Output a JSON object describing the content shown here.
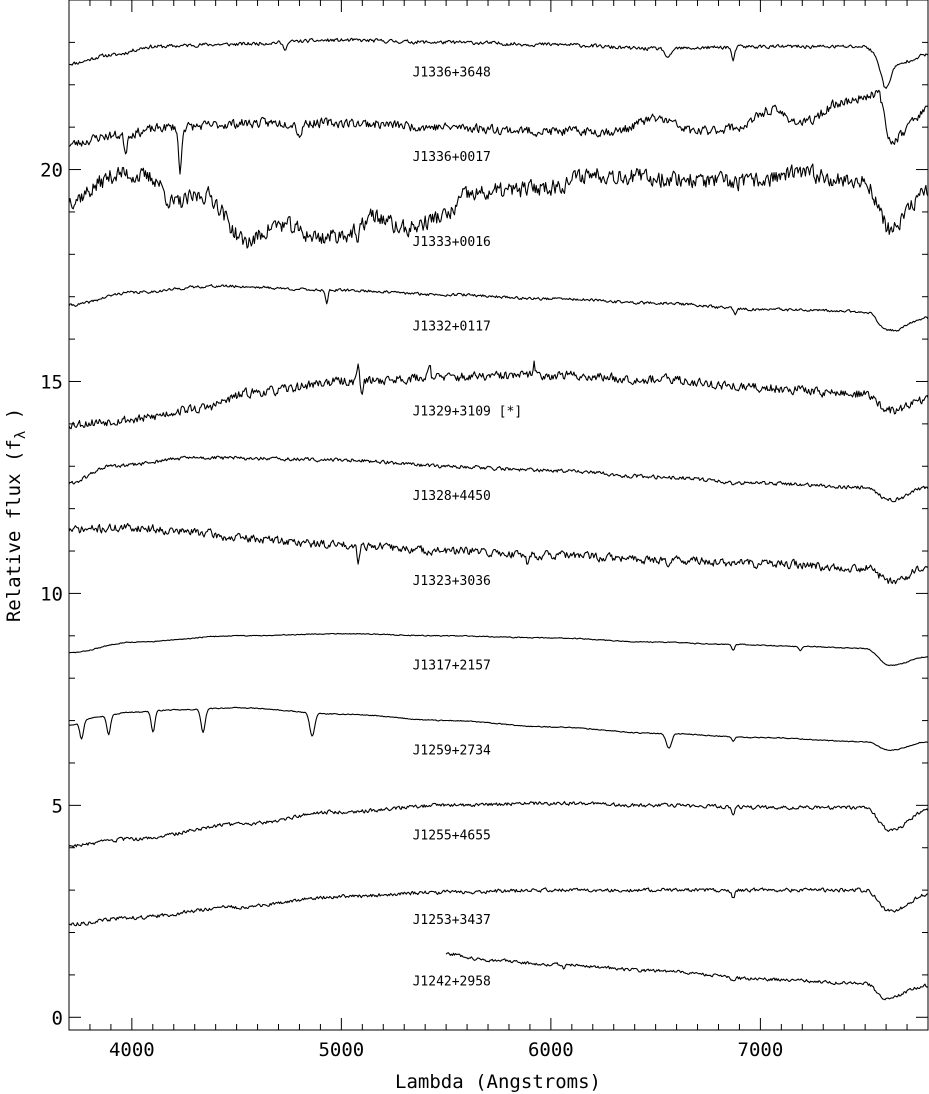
{
  "chart_data": {
    "type": "line",
    "xlabel": "Lambda (Angstroms)",
    "ylabel": "Relative flux (f",
    "ylabel_subscript": "λ",
    "ylabel_suffix": " )",
    "xlim": [
      3700,
      7800
    ],
    "ylim": [
      -0.3,
      24
    ],
    "x_ticks": [
      {
        "value": 4000,
        "label": "4000"
      },
      {
        "value": 5000,
        "label": "5000"
      },
      {
        "value": 6000,
        "label": "6000"
      },
      {
        "value": 7000,
        "label": "7000"
      }
    ],
    "y_ticks": [
      {
        "value": 0,
        "label": "0"
      },
      {
        "value": 5,
        "label": "5"
      },
      {
        "value": 10,
        "label": "10"
      },
      {
        "value": 15,
        "label": "15"
      },
      {
        "value": 20,
        "label": "20"
      }
    ],
    "grid": false,
    "series": [
      {
        "name": "J1336+3648",
        "label_y": 22.2,
        "x_start": 3700,
        "noise": 0.04,
        "seed": 11,
        "points": [
          [
            3700,
            22.5
          ],
          [
            3900,
            22.7
          ],
          [
            4100,
            22.9
          ],
          [
            4400,
            22.95
          ],
          [
            5000,
            23.05
          ],
          [
            5500,
            23.0
          ],
          [
            6000,
            22.95
          ],
          [
            6500,
            22.85
          ],
          [
            7000,
            22.9
          ],
          [
            7500,
            22.9
          ],
          [
            7600,
            22.4
          ],
          [
            7800,
            22.7
          ]
        ],
        "dips": [
          [
            4730,
            0.15,
            15
          ],
          [
            6560,
            0.25,
            18
          ],
          [
            6870,
            0.35,
            10
          ],
          [
            7600,
            0.5,
            25
          ]
        ]
      },
      {
        "name": "J1336+0017",
        "label_y": 20.2,
        "x_start": 3700,
        "noise": 0.1,
        "seed": 23,
        "points": [
          [
            3700,
            20.6
          ],
          [
            3900,
            20.8
          ],
          [
            4200,
            21.0
          ],
          [
            4600,
            21.1
          ],
          [
            5000,
            21.1
          ],
          [
            5500,
            21.0
          ],
          [
            6000,
            20.9
          ],
          [
            6300,
            20.9
          ],
          [
            6500,
            21.2
          ],
          [
            6700,
            20.9
          ],
          [
            6900,
            21.0
          ],
          [
            7050,
            21.4
          ],
          [
            7200,
            21.1
          ],
          [
            7400,
            21.6
          ],
          [
            7560,
            21.8
          ],
          [
            7620,
            20.7
          ],
          [
            7800,
            21.4
          ]
        ],
        "dips": [
          [
            4230,
            1.1,
            10
          ],
          [
            4800,
            0.3,
            15
          ],
          [
            3970,
            0.4,
            10
          ]
        ]
      },
      {
        "name": "J1333+0016",
        "label_y": 18.2,
        "x_start": 3700,
        "noise": 0.18,
        "seed": 37,
        "points": [
          [
            3700,
            19.3
          ],
          [
            3950,
            19.9
          ],
          [
            4100,
            19.8
          ],
          [
            4200,
            19.2
          ],
          [
            4350,
            19.4
          ],
          [
            4550,
            18.3
          ],
          [
            4700,
            18.7
          ],
          [
            4900,
            18.4
          ],
          [
            5050,
            18.5
          ],
          [
            5150,
            18.9
          ],
          [
            5300,
            18.6
          ],
          [
            5500,
            18.9
          ],
          [
            5600,
            19.4
          ],
          [
            5800,
            19.5
          ],
          [
            6000,
            19.6
          ],
          [
            6200,
            19.9
          ],
          [
            6500,
            19.8
          ],
          [
            6900,
            19.7
          ],
          [
            7200,
            19.9
          ],
          [
            7500,
            19.7
          ],
          [
            7620,
            18.6
          ],
          [
            7800,
            19.5
          ]
        ],
        "dips": [
          [
            5080,
            0.4,
            8
          ]
        ]
      },
      {
        "name": "J1332+0117",
        "label_y": 16.2,
        "x_start": 3700,
        "noise": 0.03,
        "seed": 41,
        "points": [
          [
            3700,
            16.8
          ],
          [
            4000,
            17.1
          ],
          [
            4400,
            17.25
          ],
          [
            5000,
            17.15
          ],
          [
            5500,
            17.05
          ],
          [
            6000,
            16.95
          ],
          [
            6500,
            16.85
          ],
          [
            7000,
            16.7
          ],
          [
            7500,
            16.65
          ],
          [
            7620,
            16.2
          ],
          [
            7800,
            16.5
          ]
        ],
        "dips": [
          [
            4930,
            0.3,
            8
          ],
          [
            6880,
            0.15,
            10
          ]
        ]
      },
      {
        "name": "J1329+3109 [*]",
        "label_y": 14.2,
        "x_start": 3700,
        "noise": 0.1,
        "seed": 53,
        "points": [
          [
            3700,
            14.0
          ],
          [
            4000,
            14.1
          ],
          [
            4300,
            14.35
          ],
          [
            4600,
            14.75
          ],
          [
            5000,
            15.0
          ],
          [
            5500,
            15.1
          ],
          [
            6000,
            15.15
          ],
          [
            6500,
            15.05
          ],
          [
            7000,
            14.85
          ],
          [
            7500,
            14.7
          ],
          [
            7620,
            14.3
          ],
          [
            7800,
            14.6
          ]
        ],
        "dips": [
          [
            5100,
            0.3,
            8
          ]
        ],
        "peaks": [
          [
            5080,
            0.4,
            8
          ],
          [
            5420,
            0.4,
            8
          ],
          [
            5920,
            0.25,
            8
          ]
        ]
      },
      {
        "name": "J1328+4450",
        "label_y": 12.2,
        "x_start": 3700,
        "noise": 0.04,
        "seed": 61,
        "points": [
          [
            3700,
            12.6
          ],
          [
            3900,
            13.0
          ],
          [
            4300,
            13.2
          ],
          [
            5000,
            13.15
          ],
          [
            5500,
            13.0
          ],
          [
            6000,
            12.9
          ],
          [
            6500,
            12.75
          ],
          [
            7000,
            12.6
          ],
          [
            7500,
            12.5
          ],
          [
            7620,
            12.2
          ],
          [
            7800,
            12.5
          ]
        ],
        "dips": [
          [
            6870,
            0.1,
            10
          ]
        ]
      },
      {
        "name": "J1323+3036",
        "label_y": 10.2,
        "x_start": 3700,
        "noise": 0.09,
        "seed": 71,
        "points": [
          [
            3700,
            11.5
          ],
          [
            4000,
            11.55
          ],
          [
            4300,
            11.45
          ],
          [
            4500,
            11.3
          ],
          [
            5000,
            11.15
          ],
          [
            5500,
            11.0
          ],
          [
            6000,
            10.9
          ],
          [
            6500,
            10.8
          ],
          [
            7000,
            10.7
          ],
          [
            7500,
            10.6
          ],
          [
            7620,
            10.3
          ],
          [
            7800,
            10.6
          ]
        ],
        "dips": [
          [
            5080,
            0.35,
            8
          ],
          [
            5890,
            0.2,
            8
          ],
          [
            6560,
            0.15,
            8
          ]
        ]
      },
      {
        "name": "J1317+2157",
        "label_y": 8.2,
        "x_start": 3700,
        "noise": 0.01,
        "seed": 83,
        "points": [
          [
            3700,
            8.6
          ],
          [
            4000,
            8.85
          ],
          [
            4500,
            9.0
          ],
          [
            5000,
            9.05
          ],
          [
            5500,
            9.0
          ],
          [
            6000,
            8.95
          ],
          [
            6500,
            8.85
          ],
          [
            6850,
            8.8
          ],
          [
            7200,
            8.75
          ],
          [
            7500,
            8.7
          ],
          [
            7620,
            8.3
          ],
          [
            7800,
            8.5
          ]
        ],
        "dips": [
          [
            6870,
            0.15,
            10
          ],
          [
            7190,
            0.1,
            10
          ]
        ]
      },
      {
        "name": "J1259+2734",
        "label_y": 6.2,
        "x_start": 3700,
        "noise": 0.01,
        "seed": 97,
        "points": [
          [
            3700,
            6.9
          ],
          [
            3850,
            7.1
          ],
          [
            4000,
            7.2
          ],
          [
            4200,
            7.25
          ],
          [
            4500,
            7.3
          ],
          [
            5000,
            7.15
          ],
          [
            5500,
            7.0
          ],
          [
            6000,
            6.85
          ],
          [
            6500,
            6.7
          ],
          [
            7000,
            6.6
          ],
          [
            7500,
            6.5
          ],
          [
            7620,
            6.3
          ],
          [
            7800,
            6.5
          ]
        ],
        "dips": [
          [
            3760,
            0.4,
            12
          ],
          [
            3889,
            0.45,
            12
          ],
          [
            4101,
            0.5,
            12
          ],
          [
            4340,
            0.55,
            14
          ],
          [
            4861,
            0.55,
            16
          ],
          [
            6563,
            0.35,
            18
          ],
          [
            6870,
            0.1,
            10
          ]
        ]
      },
      {
        "name": "J1255+4655",
        "label_y": 4.2,
        "x_start": 3700,
        "noise": 0.04,
        "seed": 103,
        "points": [
          [
            3700,
            4.05
          ],
          [
            4000,
            4.2
          ],
          [
            4500,
            4.55
          ],
          [
            5000,
            4.85
          ],
          [
            5500,
            5.0
          ],
          [
            6000,
            5.05
          ],
          [
            6500,
            5.0
          ],
          [
            7000,
            4.95
          ],
          [
            7500,
            4.95
          ],
          [
            7620,
            4.4
          ],
          [
            7800,
            4.9
          ]
        ],
        "dips": [
          [
            6870,
            0.15,
            10
          ]
        ]
      },
      {
        "name": "J1253+3437",
        "label_y": 2.2,
        "x_start": 3700,
        "noise": 0.04,
        "seed": 113,
        "points": [
          [
            3700,
            2.2
          ],
          [
            4000,
            2.35
          ],
          [
            4500,
            2.6
          ],
          [
            5000,
            2.85
          ],
          [
            5500,
            2.95
          ],
          [
            6000,
            3.0
          ],
          [
            6500,
            3.0
          ],
          [
            7000,
            3.0
          ],
          [
            7500,
            3.0
          ],
          [
            7620,
            2.5
          ],
          [
            7800,
            2.9
          ]
        ],
        "dips": [
          [
            6870,
            0.2,
            10
          ]
        ]
      },
      {
        "name": "J1242+2958",
        "label_y": 0.75,
        "x_start": 5500,
        "noise": 0.035,
        "seed": 127,
        "points": [
          [
            5500,
            1.5
          ],
          [
            5700,
            1.35
          ],
          [
            6000,
            1.25
          ],
          [
            6500,
            1.1
          ],
          [
            7000,
            0.9
          ],
          [
            7500,
            0.8
          ],
          [
            7600,
            0.45
          ],
          [
            7800,
            0.75
          ]
        ],
        "dips": [
          [
            6870,
            0.1,
            10
          ],
          [
            6060,
            0.1,
            8
          ]
        ]
      }
    ]
  }
}
